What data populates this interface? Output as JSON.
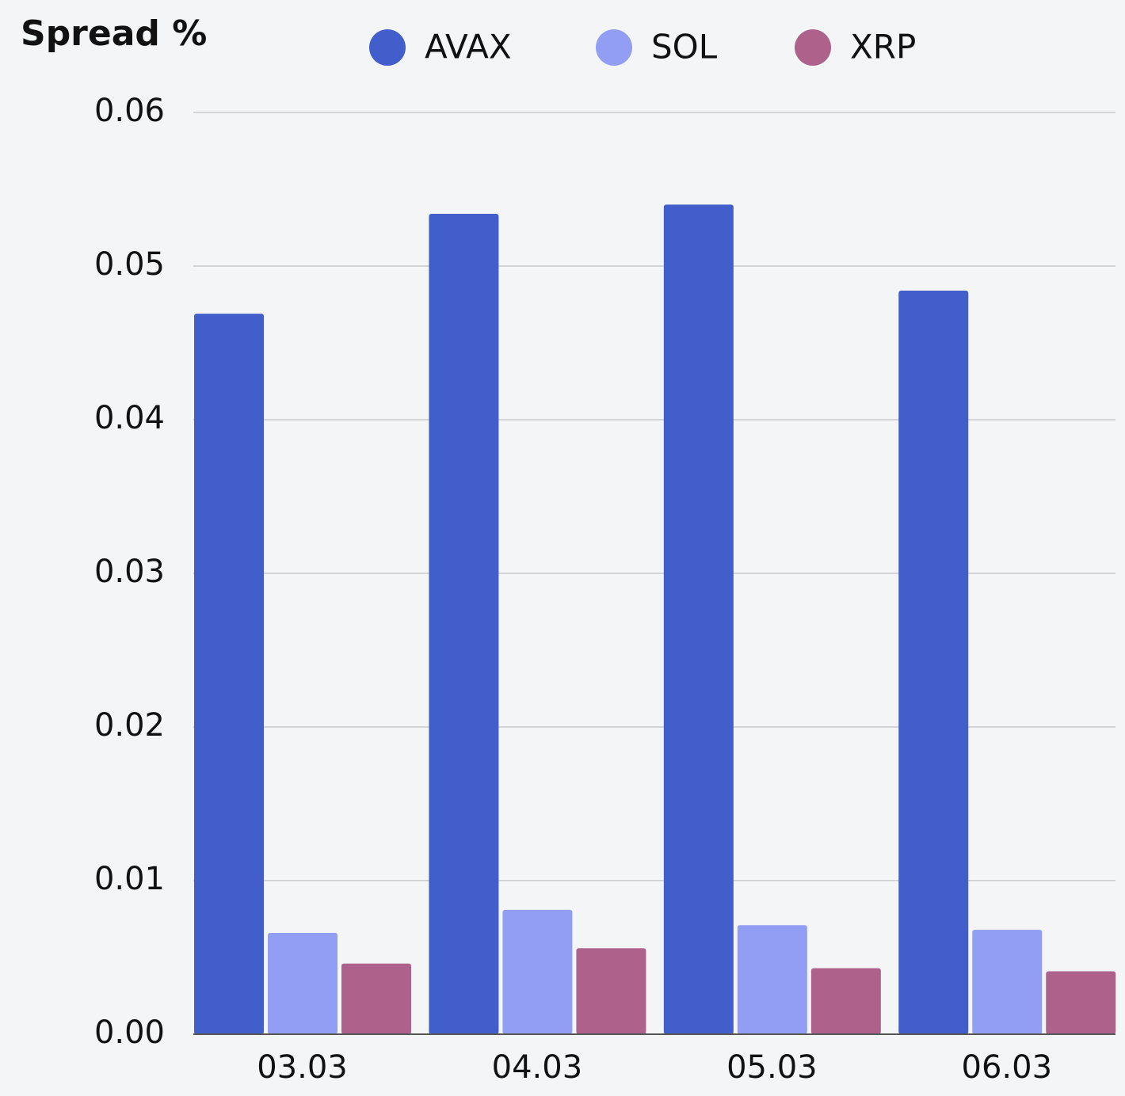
{
  "chart_data": {
    "type": "bar",
    "title": "Spread %",
    "categories": [
      "03.03",
      "04.03",
      "05.03",
      "06.03"
    ],
    "series": [
      {
        "name": "AVAX",
        "color": "#425ecb",
        "values": [
          0.0469,
          0.0534,
          0.054,
          0.0484
        ]
      },
      {
        "name": "SOL",
        "color": "#929ef3",
        "values": [
          0.0066,
          0.0081,
          0.0071,
          0.0068
        ]
      },
      {
        "name": "XRP",
        "color": "#ad618b",
        "values": [
          0.0046,
          0.0056,
          0.0043,
          0.0041
        ]
      }
    ],
    "ylim": [
      0,
      0.06
    ],
    "yticks": [
      {
        "value": 0,
        "label": "0.00"
      },
      0.01,
      0.02,
      0.03,
      0.04,
      0.05,
      0.06
    ],
    "grid": true
  }
}
